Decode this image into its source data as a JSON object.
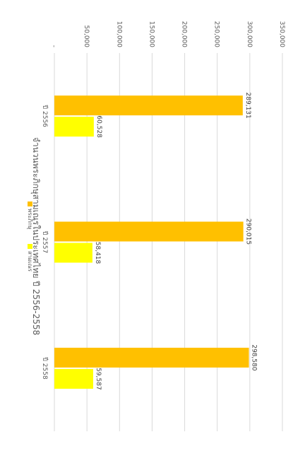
{
  "chart_data": {
    "type": "bar",
    "orientation": "vertical",
    "title": "จำนวนพระภิกษุสามเณรในประเทศไทย ปี 2556-2558",
    "categories": [
      "ปี 2556",
      "ปี 2557",
      "ปี 2558"
    ],
    "series": [
      {
        "name": "พระภิกษุ",
        "values": [
          289131,
          290015,
          298580
        ],
        "labels": [
          "289,131",
          "290,015",
          "298,580"
        ],
        "color": "#FFC000"
      },
      {
        "name": "สามเณร",
        "values": [
          60528,
          58418,
          59587
        ],
        "labels": [
          "60,528",
          "58,418",
          "59,587"
        ],
        "color": "#FFFF00"
      }
    ],
    "yticks": [
      "-",
      "50,000",
      "100,000",
      "150,000",
      "200,000",
      "250,000",
      "300,000",
      "350,000"
    ],
    "ylim": [
      0,
      350000
    ],
    "grid": true,
    "legend_position": "bottom",
    "rotation_deg": 90
  }
}
